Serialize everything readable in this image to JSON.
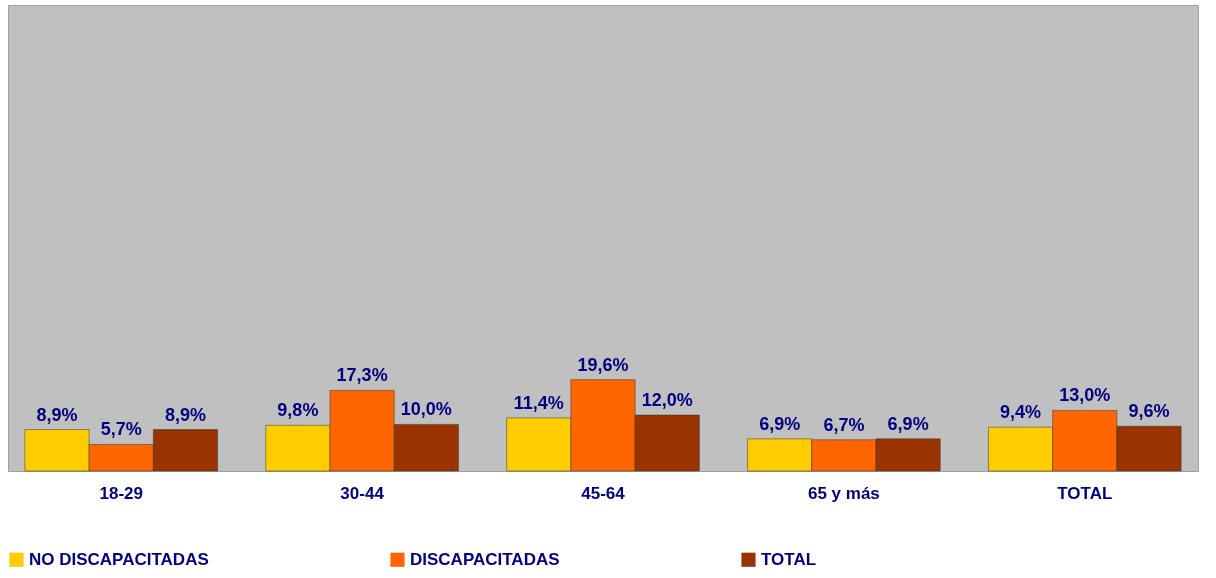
{
  "chart_data": {
    "type": "bar",
    "categories": [
      "18-29",
      "30-44",
      "45-64",
      "65 y más",
      "TOTAL"
    ],
    "series": [
      {
        "name": "NO DISCAPACITADAS",
        "color": "#ffcc00",
        "values": [
          8.9,
          9.8,
          11.4,
          6.9,
          9.4
        ],
        "value_labels": [
          "8,9%",
          "9,8%",
          "11,4%",
          "6,9%",
          "9,4%"
        ]
      },
      {
        "name": "DISCAPACITADAS",
        "color": "#ff6600",
        "values": [
          5.7,
          17.3,
          19.6,
          6.7,
          13.0
        ],
        "value_labels": [
          "5,7%",
          "17,3%",
          "19,6%",
          "6,7%",
          "13,0%"
        ]
      },
      {
        "name": "TOTAL",
        "color": "#993300",
        "values": [
          8.9,
          10.0,
          12.0,
          6.9,
          9.6
        ],
        "value_labels": [
          "8,9%",
          "10,0%",
          "12,0%",
          "6,9%",
          "9,6%"
        ]
      }
    ],
    "ylim": [
      0,
      100
    ],
    "tick_labels": "x",
    "legend": "bottom"
  }
}
